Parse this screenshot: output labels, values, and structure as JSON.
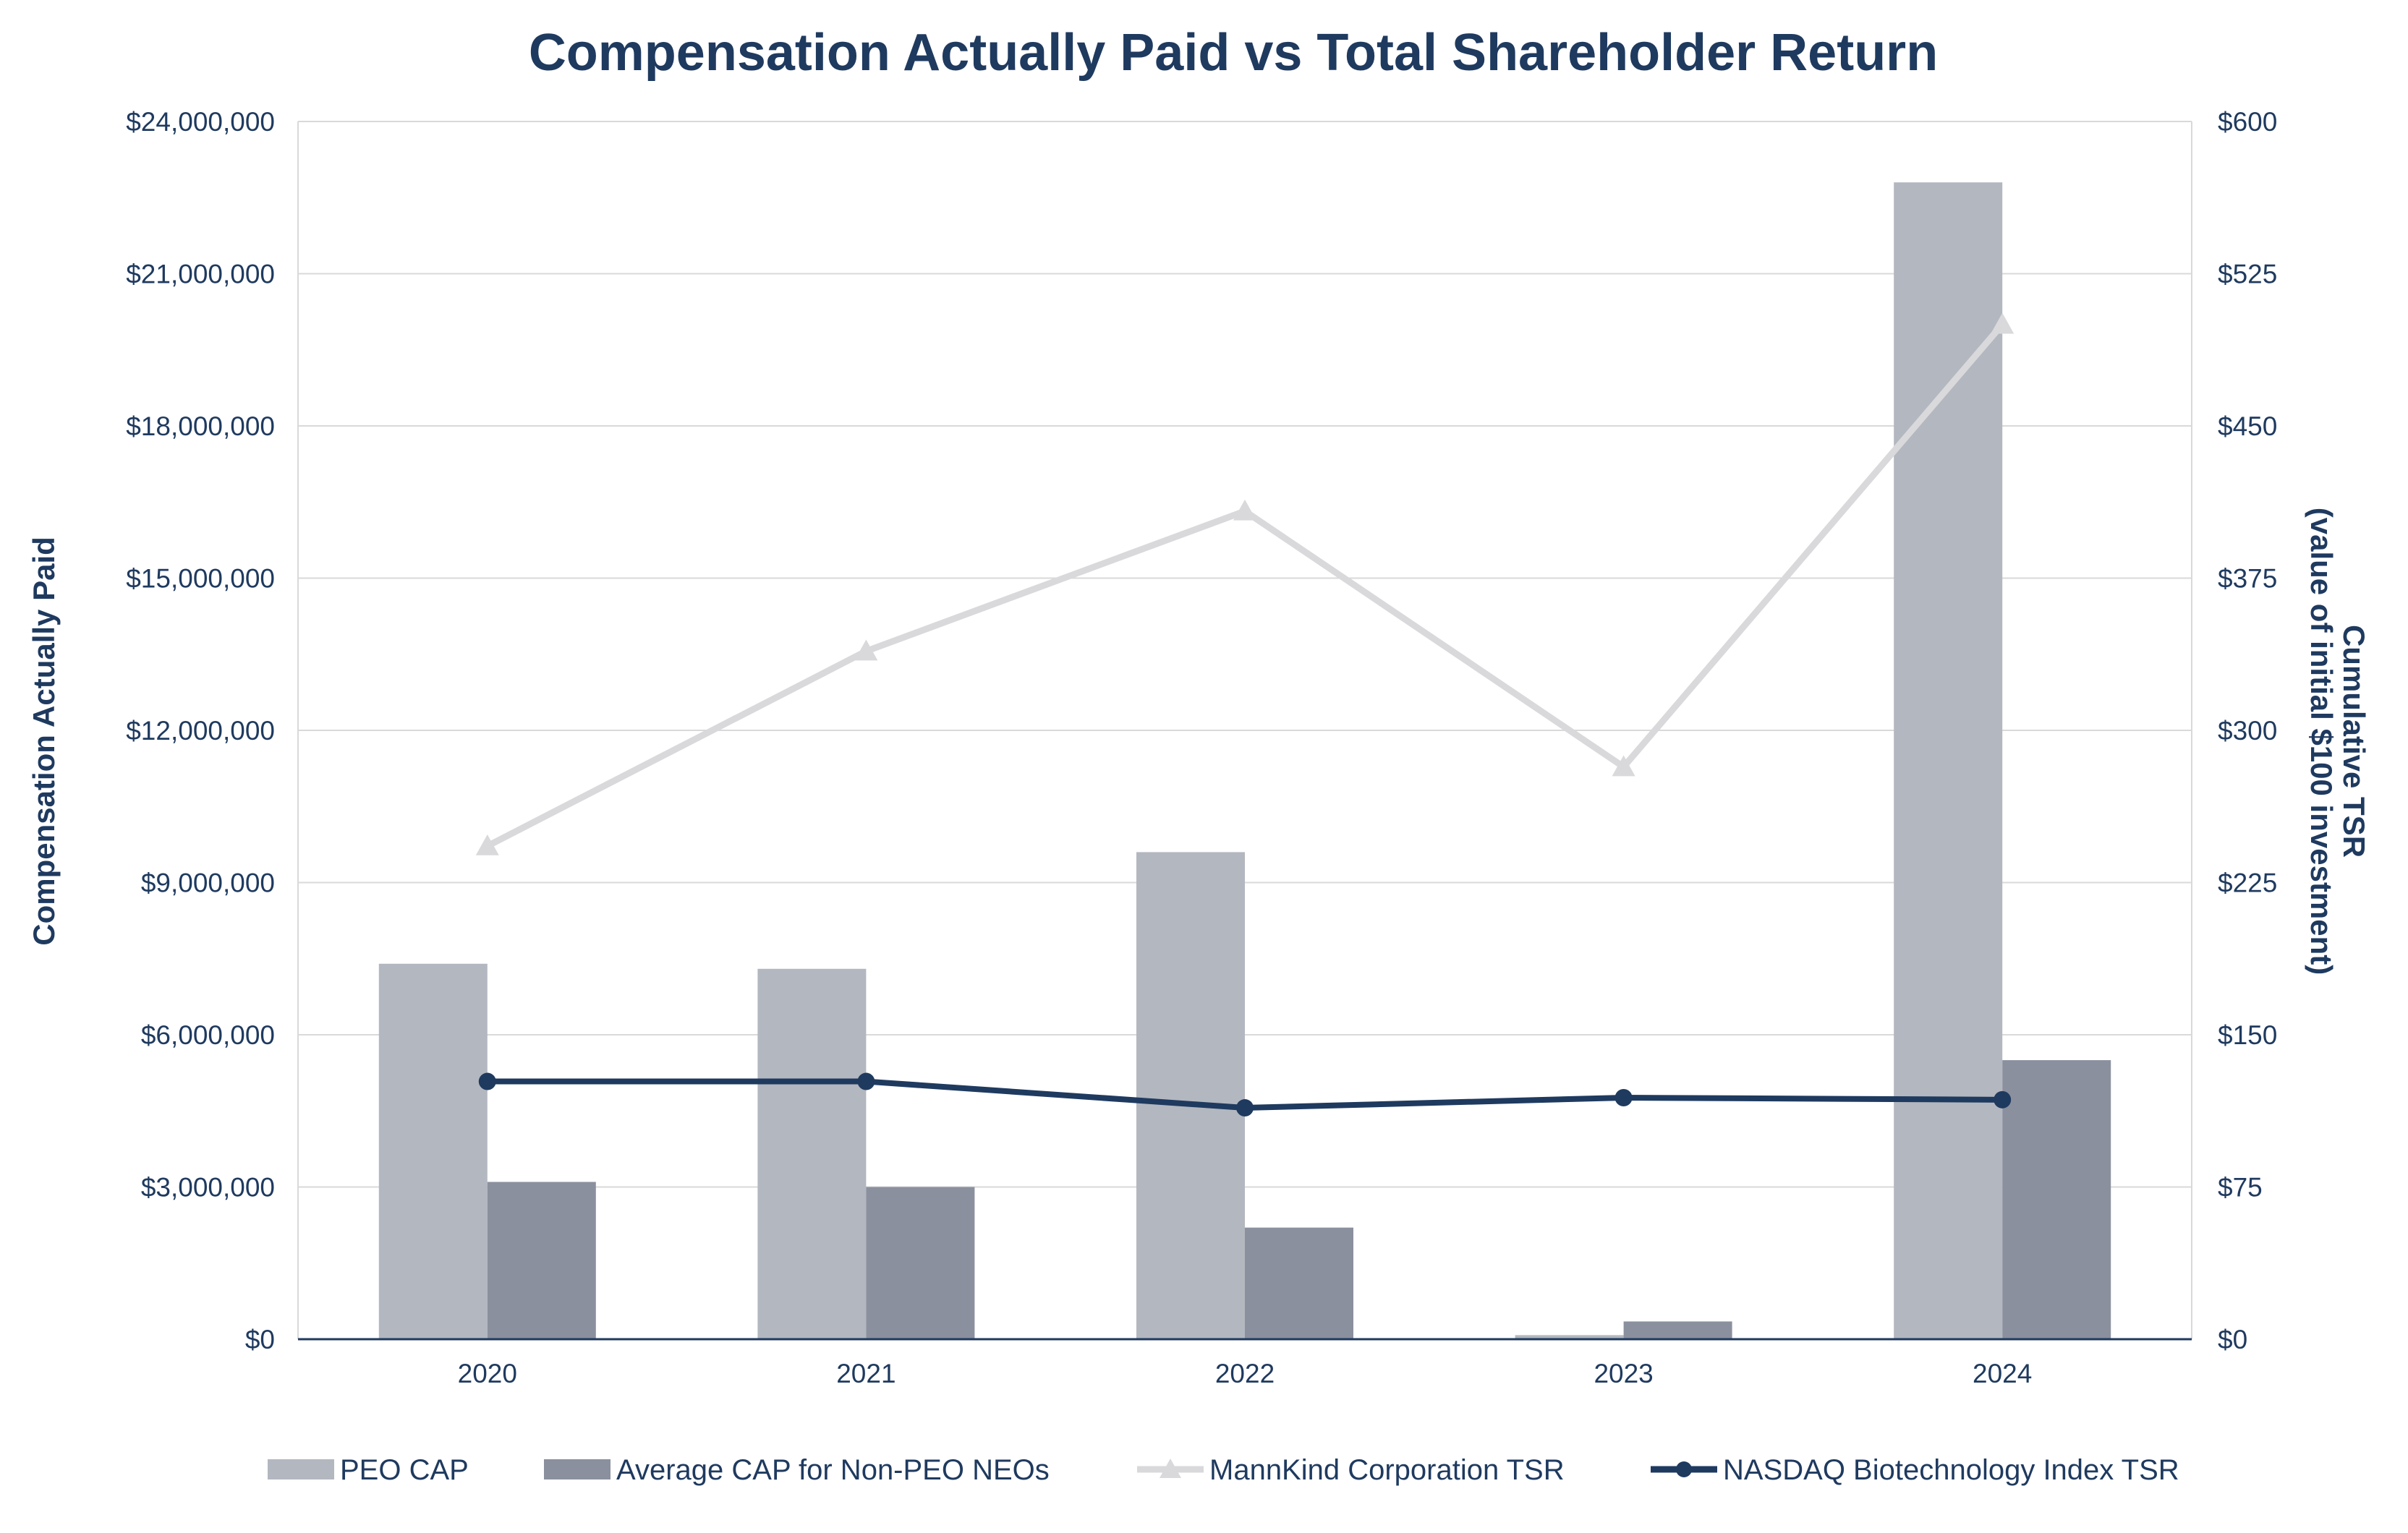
{
  "chart_data": {
    "type": "bar",
    "title": "Compensation Actually Paid vs Total Shareholder Return",
    "categories": [
      "2020",
      "2021",
      "2022",
      "2023",
      "2024"
    ],
    "ylabel_left": "Compensation Actually Paid",
    "ylabel_right_line1": "Cumulative TSR",
    "ylabel_right_line2": "(value of initial $100 investment)",
    "ylim_left": [
      0,
      24000000
    ],
    "ylim_right": [
      0,
      600
    ],
    "left_ticks": [
      "$0",
      "$3,000,000",
      "$6,000,000",
      "$9,000,000",
      "$12,000,000",
      "$15,000,000",
      "$18,000,000",
      "$21,000,000",
      "$24,000,000"
    ],
    "left_tick_values": [
      0,
      3000000,
      6000000,
      9000000,
      12000000,
      15000000,
      18000000,
      21000000,
      24000000
    ],
    "right_ticks": [
      "$0",
      "$75",
      "$150",
      "$225",
      "$300",
      "$375",
      "$450",
      "$525",
      "$600"
    ],
    "right_tick_values": [
      0,
      75,
      150,
      225,
      300,
      375,
      450,
      525,
      600
    ],
    "grid": true,
    "legend_position": "bottom",
    "bar_series": [
      {
        "name": "PEO CAP",
        "color": "#b3b7bf",
        "values": [
          7400000,
          7300000,
          9600000,
          80000,
          22800000
        ]
      },
      {
        "name": "Average CAP for Non-PEO NEOs",
        "color": "#8b909e",
        "values": [
          3100000,
          3000000,
          2200000,
          350000,
          5500000
        ]
      }
    ],
    "line_series": [
      {
        "name": "MannKind Corporation TSR",
        "color": "#d9d9dc",
        "marker": "triangle",
        "axis": "right",
        "values": [
          243,
          339,
          408,
          282,
          500
        ]
      },
      {
        "name": "NASDAQ Biotechnology Index TSR",
        "color": "#1f3a5f",
        "marker": "circle",
        "axis": "right",
        "values": [
          127,
          127,
          114,
          119,
          118
        ]
      }
    ]
  }
}
